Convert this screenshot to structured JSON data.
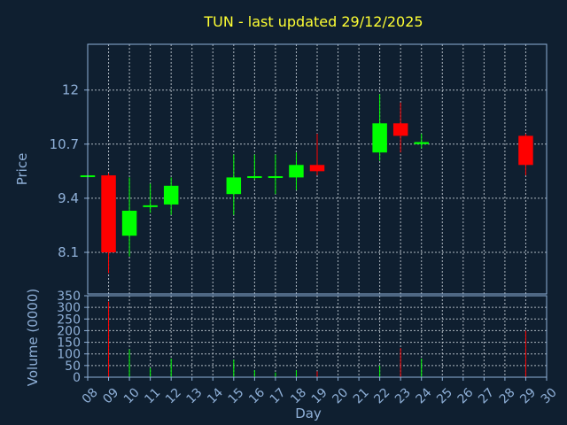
{
  "colors": {
    "background": "#0f1f30",
    "up": "#00ff00",
    "down": "#ff0000",
    "text": "#8fb0d8",
    "title": "#ffff33"
  },
  "chart_data": {
    "type": "candlestick",
    "title": "TUN - last updated 29/12/2025",
    "xlabel": "Day",
    "ylabel": "Price",
    "volume_label": "Volume (0000)",
    "x_ticks": [
      "08",
      "09",
      "10",
      "11",
      "12",
      "13",
      "14",
      "15",
      "16",
      "17",
      "18",
      "19",
      "20",
      "21",
      "22",
      "23",
      "24",
      "25",
      "26",
      "27",
      "28",
      "29",
      "30"
    ],
    "xlim": [
      8,
      30
    ],
    "price_ticks": [
      "8.1",
      "9.4",
      "10.7",
      "12"
    ],
    "price_ylim": [
      7.1,
      13.1
    ],
    "volume_ticks": [
      "0",
      "50",
      "100",
      "150",
      "200",
      "250",
      "300",
      "350"
    ],
    "volume_ylim": [
      0,
      350
    ],
    "grid": true,
    "candles": [
      {
        "day": 8,
        "open": 9.95,
        "high": 9.97,
        "low": 9.93,
        "close": 9.95,
        "volume": 5
      },
      {
        "day": 9,
        "open": 9.95,
        "high": 10.0,
        "low": 7.6,
        "close": 8.1,
        "volume": 325
      },
      {
        "day": 10,
        "open": 8.5,
        "high": 9.9,
        "low": 8.0,
        "close": 9.1,
        "volume": 120
      },
      {
        "day": 11,
        "open": 9.2,
        "high": 9.75,
        "low": 9.05,
        "close": 9.23,
        "volume": 40
      },
      {
        "day": 12,
        "open": 9.25,
        "high": 9.9,
        "low": 9.0,
        "close": 9.7,
        "volume": 80
      },
      {
        "day": 15,
        "open": 9.5,
        "high": 10.45,
        "low": 9.0,
        "close": 9.9,
        "volume": 75
      },
      {
        "day": 16,
        "open": 9.9,
        "high": 10.45,
        "low": 9.85,
        "close": 9.93,
        "volume": 30
      },
      {
        "day": 17,
        "open": 9.9,
        "high": 10.45,
        "low": 9.5,
        "close": 9.93,
        "volume": 20
      },
      {
        "day": 18,
        "open": 9.9,
        "high": 10.5,
        "low": 9.6,
        "close": 10.2,
        "volume": 30
      },
      {
        "day": 19,
        "open": 10.2,
        "high": 10.95,
        "low": 9.95,
        "close": 10.05,
        "volume": 25
      },
      {
        "day": 22,
        "open": 10.5,
        "high": 11.9,
        "low": 10.3,
        "close": 11.2,
        "volume": 50
      },
      {
        "day": 23,
        "open": 11.2,
        "high": 11.7,
        "low": 10.5,
        "close": 10.9,
        "volume": 125
      },
      {
        "day": 24,
        "open": 10.7,
        "high": 10.95,
        "low": 10.6,
        "close": 10.75,
        "volume": 80
      },
      {
        "day": 29,
        "open": 10.9,
        "high": 10.95,
        "low": 9.95,
        "close": 10.2,
        "volume": 200
      }
    ]
  }
}
